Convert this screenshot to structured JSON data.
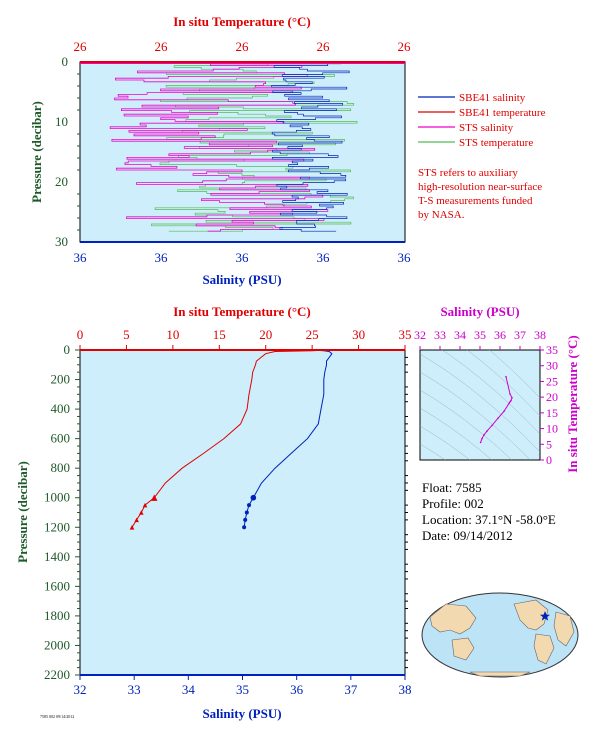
{
  "colors": {
    "temperature": "#e00000",
    "salinity": "#0022bb",
    "sts_salinity": "#ee00cc",
    "sts_temperature": "#55bb55",
    "plot_bg": "#cdeefa",
    "pressure_axis": "#1f5a2a",
    "ts_axis": "#cc00cc",
    "land": "#f2d9b0",
    "ocean": "#bde3f7"
  },
  "top_panel": {
    "temp_axis_title": "In situ Temperature (°C)",
    "temp_ticks": [
      "26",
      "26",
      "26",
      "26",
      "26"
    ],
    "sal_axis_title": "Salinity (PSU)",
    "sal_ticks": [
      "36",
      "36",
      "36",
      "36",
      "36"
    ],
    "pressure_axis_title": "Pressure (decibar)",
    "pressure_ticks": [
      "0",
      "10",
      "20",
      "30"
    ],
    "legend": [
      {
        "label": "SBE41 salinity",
        "color": "#0022bb"
      },
      {
        "label": "SBE41 temperature",
        "color": "#e00000"
      },
      {
        "label": "STS salinity",
        "color": "#ee00cc"
      },
      {
        "label": "STS temperature",
        "color": "#55bb55"
      }
    ],
    "note": [
      "STS refers to auxiliary",
      "high-resolution near-surface",
      "T-S measurements funded",
      "by NASA."
    ]
  },
  "main_panel": {
    "temp_axis_title": "In situ Temperature (°C)",
    "temp_ticks": [
      "0",
      "5",
      "10",
      "15",
      "20",
      "25",
      "30",
      "35"
    ],
    "sal_axis_title": "Salinity (PSU)",
    "sal_ticks": [
      "32",
      "33",
      "34",
      "35",
      "36",
      "37",
      "38"
    ],
    "pressure_axis_title": "Pressure (decibar)",
    "pressure_ticks": [
      "0",
      "200",
      "400",
      "600",
      "800",
      "1000",
      "1200",
      "1400",
      "1600",
      "1800",
      "2000",
      "2200"
    ]
  },
  "ts_panel": {
    "sal_axis_title": "Salinity (PSU)",
    "sal_ticks": [
      "32",
      "33",
      "34",
      "35",
      "36",
      "37",
      "38"
    ],
    "temp_axis_title": "In situ Temperature (°C)",
    "temp_ticks": [
      "0",
      "5",
      "10",
      "15",
      "20",
      "25",
      "30",
      "35"
    ]
  },
  "float_info": {
    "float": "Float:  7585",
    "profile": "Profile:  002",
    "location": "Location:  37.1°N  -58.0°E",
    "date": "Date:  09/14/2012"
  },
  "footer_small": "7585 002 09/14/2012",
  "chart_data": [
    {
      "type": "line",
      "name": "main profile",
      "pressure_range": [
        0,
        2200
      ],
      "temperature_range": [
        0,
        35
      ],
      "salinity_range": [
        32,
        38
      ],
      "series": [
        {
          "name": "temperature",
          "pressure": [
            0,
            5,
            10,
            25,
            50,
            75,
            100,
            150,
            200,
            300,
            400,
            500,
            600,
            700,
            800,
            900,
            1000,
            1050,
            1100,
            1150,
            1200
          ],
          "values": [
            26.5,
            25,
            21,
            20,
            19.5,
            19,
            18.9,
            18.6,
            18.5,
            18.2,
            18.0,
            17.3,
            15.5,
            13.3,
            11.0,
            9.2,
            8.0,
            7.0,
            6.6,
            6.1,
            5.6
          ]
        },
        {
          "name": "salinity",
          "pressure": [
            0,
            5,
            10,
            25,
            50,
            75,
            100,
            150,
            200,
            300,
            400,
            500,
            600,
            700,
            800,
            900,
            1000,
            1050,
            1100,
            1150,
            1200
          ],
          "values": [
            36.3,
            36.5,
            36.6,
            36.65,
            36.6,
            36.55,
            36.55,
            36.52,
            36.5,
            36.5,
            36.45,
            36.4,
            36.2,
            35.9,
            35.6,
            35.35,
            35.2,
            35.12,
            35.08,
            35.05,
            35.03
          ]
        }
      ]
    },
    {
      "type": "scatter",
      "name": "T-S diagram",
      "xlim": [
        32,
        38
      ],
      "ylim": [
        0,
        35
      ],
      "x": [
        36.3,
        36.5,
        36.6,
        36.55,
        36.5,
        36.45,
        36.2,
        35.9,
        35.6,
        35.35,
        35.2,
        35.1,
        35.03
      ],
      "y": [
        26.5,
        21,
        19.8,
        18.9,
        18.5,
        18.0,
        15.5,
        13.3,
        11.0,
        9.2,
        8.0,
        6.8,
        5.6
      ]
    }
  ]
}
